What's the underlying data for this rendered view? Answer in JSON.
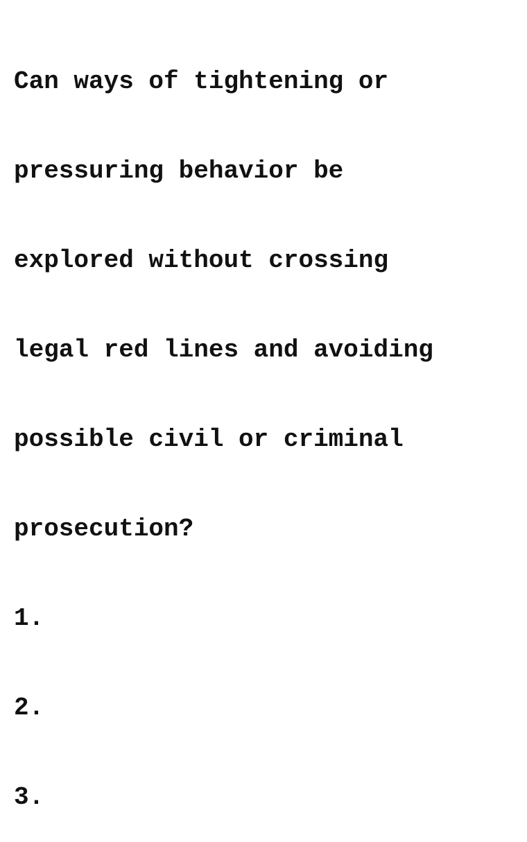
{
  "document": {
    "question_lines": [
      "Can ways of tightening or",
      "pressuring behavior be",
      "explored without crossing",
      "legal red lines and avoiding",
      "possible civil or criminal",
      "prosecution?"
    ],
    "list_items": [
      "1.",
      "2.",
      "3."
    ]
  }
}
